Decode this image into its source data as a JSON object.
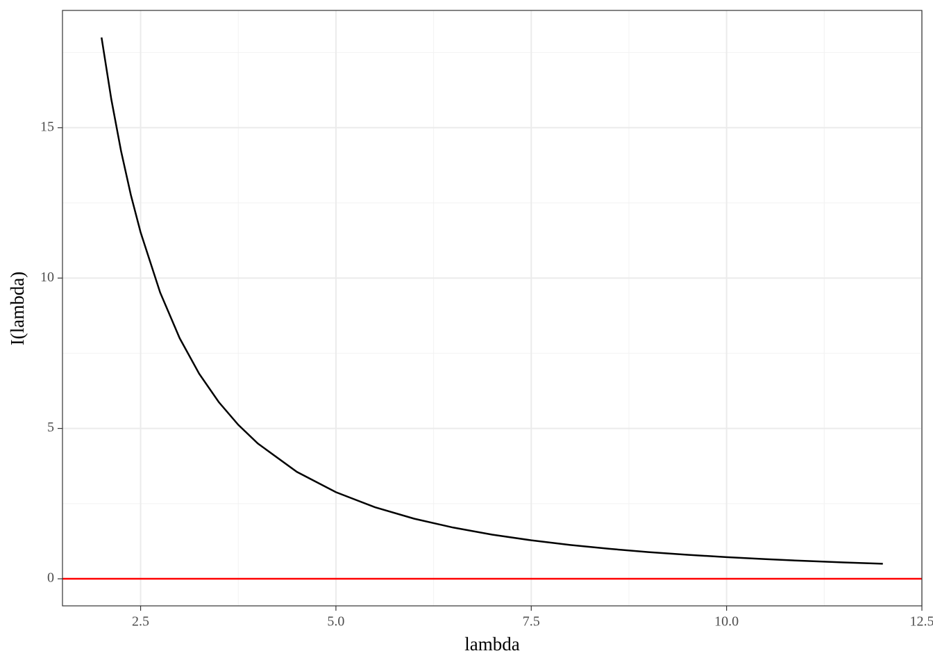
{
  "chart_data": {
    "type": "line",
    "x_label": "lambda",
    "y_label": "I(lambda)",
    "x": [
      2,
      2.125,
      2.25,
      2.375,
      2.5,
      2.75,
      3,
      3.25,
      3.5,
      3.75,
      4,
      4.5,
      5,
      5.5,
      6,
      6.5,
      7,
      7.5,
      8,
      8.5,
      9,
      9.5,
      10,
      10.5,
      11,
      11.5,
      12
    ],
    "series": [
      {
        "color": "#000000",
        "values": [
          18,
          15.945,
          14.222,
          12.765,
          11.52,
          9.521,
          8,
          6.817,
          5.878,
          5.12,
          4.5,
          3.556,
          2.88,
          2.38,
          2,
          1.704,
          1.469,
          1.28,
          1.125,
          0.997,
          0.889,
          0.798,
          0.72,
          0.653,
          0.595,
          0.544,
          0.5
        ]
      }
    ],
    "hline": {
      "value": 0,
      "color": "#ff0000"
    },
    "xlim": [
      1.5,
      12.5
    ],
    "ylim": [
      -0.9,
      18.9
    ],
    "xticks": [
      2.5,
      {
        "value": 5,
        "label": "5.0"
      },
      7.5,
      {
        "value": 10,
        "label": "10.0"
      },
      12.5
    ],
    "yticks": [
      0,
      5,
      10,
      15
    ],
    "grid": true
  }
}
